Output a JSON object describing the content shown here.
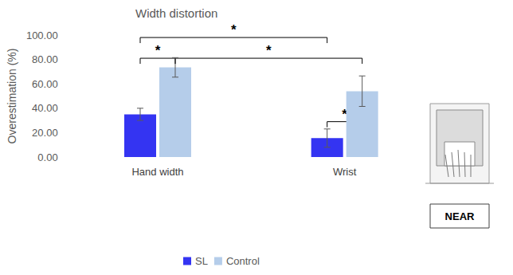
{
  "chart_data": {
    "type": "bar",
    "title": "Width distortion",
    "y_label": "Overestimation (%)",
    "categories": [
      "Hand width",
      "Wrist"
    ],
    "series": [
      {
        "name": "SL",
        "color": "#3434f2",
        "values": [
          35,
          15.5
        ],
        "errors": [
          5,
          7.5
        ]
      },
      {
        "name": "Control",
        "color": "#b5cdea",
        "values": [
          73.5,
          54
        ],
        "errors": [
          8,
          12.5
        ]
      }
    ],
    "ylim": [
      0,
      100
    ],
    "yticks": [
      {
        "value": 0,
        "label": "0.00"
      },
      {
        "value": 20,
        "label": "20.00"
      },
      {
        "value": 40,
        "label": "40.00"
      },
      {
        "value": 60,
        "label": "60.00"
      },
      {
        "value": 80,
        "label": "80.00"
      },
      {
        "value": 100,
        "label": "100.00"
      }
    ],
    "grid": false,
    "legend": "bottom",
    "annotations": [
      {
        "text": "*",
        "from": {
          "category": "Hand width",
          "series": "SL"
        },
        "to": {
          "category": "Wrist",
          "series": "SL"
        },
        "y": 98
      },
      {
        "text": "*",
        "from": {
          "category": "Hand width",
          "series": "SL"
        },
        "to": {
          "category": "Hand width",
          "series": "Control"
        },
        "y": 81
      },
      {
        "text": "*",
        "from": {
          "category": "Hand width",
          "series": "Control"
        },
        "to": {
          "category": "Wrist",
          "series": "Control"
        },
        "y": 81
      },
      {
        "text": "*",
        "from": {
          "category": "Wrist",
          "series": "SL"
        },
        "to": {
          "category": "Wrist",
          "series": "Control"
        },
        "y": 29
      }
    ],
    "inset_label": "NEAR"
  }
}
